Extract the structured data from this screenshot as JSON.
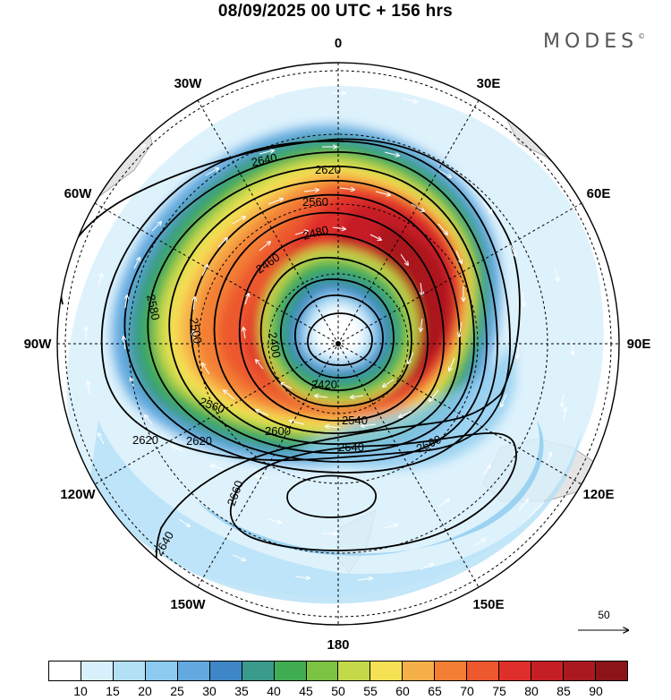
{
  "header": {
    "title": "08/09/2025  00 UTC  + 156 hrs"
  },
  "brand": {
    "name": "MODES",
    "mark": "©"
  },
  "longitude_labels": [
    {
      "id": "lon-0",
      "text": "0",
      "bearing": 0
    },
    {
      "id": "lon-30e",
      "text": "30E",
      "bearing": 30
    },
    {
      "id": "lon-60e",
      "text": "60E",
      "bearing": 60
    },
    {
      "id": "lon-90e",
      "text": "90E",
      "bearing": 90
    },
    {
      "id": "lon-120e",
      "text": "120E",
      "bearing": 120
    },
    {
      "id": "lon-150e",
      "text": "150E",
      "bearing": 150
    },
    {
      "id": "lon-180",
      "text": "180",
      "bearing": 180
    },
    {
      "id": "lon-150w",
      "text": "150W",
      "bearing": 210
    },
    {
      "id": "lon-120w",
      "text": "120W",
      "bearing": 240
    },
    {
      "id": "lon-90w",
      "text": "90W",
      "bearing": 270
    },
    {
      "id": "lon-60w",
      "text": "60W",
      "bearing": 300
    },
    {
      "id": "lon-30w",
      "text": "30W",
      "bearing": 330
    }
  ],
  "contour_labels": [
    "2400",
    "2420",
    "2460",
    "2480",
    "2500",
    "2540",
    "2560",
    "2580",
    "2600",
    "2620",
    "2640",
    "2660"
  ],
  "colorbar": {
    "colors": [
      "#ffffff",
      "#d8f0fb",
      "#b4e0f6",
      "#8ccbef",
      "#63a9e0",
      "#3e86c6",
      "#3a9a8c",
      "#41ad52",
      "#7cc243",
      "#c4d94a",
      "#f6e154",
      "#f6b04a",
      "#f37f35",
      "#ed582e",
      "#df2f2a",
      "#c51f26",
      "#a9191f",
      "#8b1419"
    ],
    "ticks": [
      "10",
      "15",
      "20",
      "25",
      "30",
      "35",
      "40",
      "45",
      "50",
      "55",
      "60",
      "65",
      "70",
      "75",
      "80",
      "85",
      "90"
    ]
  },
  "reference_vector": {
    "label": "50"
  }
}
